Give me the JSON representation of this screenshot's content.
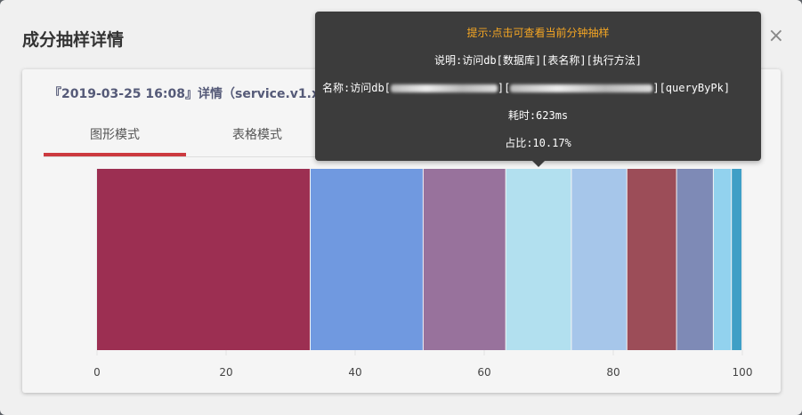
{
  "modal": {
    "title": "成分抽样详情",
    "close_label": "×"
  },
  "card": {
    "title": "『2019-03-25 16:08』详情（service.v1.xxxxxx.sysdef.Meta）"
  },
  "tabs": [
    {
      "label": "图形模式",
      "active": true
    },
    {
      "label": "表格模式",
      "active": false
    }
  ],
  "tooltip": {
    "hint": "提示:点击可查看当前分钟抽样",
    "desc": "说明:访问db[数据库][表名称][执行方法]",
    "name_prefix": "名称:访问db[",
    "name_mid1": "][",
    "name_mid2": "][queryByPk]",
    "elapsed": "耗时:623ms",
    "ratio": "占比:10.17%"
  },
  "chart_data": {
    "type": "bar",
    "orientation": "horizontal-stacked",
    "xlim": [
      0,
      100
    ],
    "xticks": [
      "0",
      "20",
      "40",
      "60",
      "80",
      "100"
    ],
    "segments": [
      {
        "value": 33.1,
        "color": "#9c2f52"
      },
      {
        "value": 17.5,
        "color": "#7099e0"
      },
      {
        "value": 12.8,
        "color": "#98729c"
      },
      {
        "value": 10.17,
        "color": "#b2e0ef"
      },
      {
        "value": 8.6,
        "color": "#a6c6ea"
      },
      {
        "value": 7.7,
        "color": "#9c4d58"
      },
      {
        "value": 5.7,
        "color": "#7e8ab6"
      },
      {
        "value": 2.8,
        "color": "#92d2ee"
      },
      {
        "value": 1.63,
        "color": "#3f9fc6"
      }
    ]
  }
}
